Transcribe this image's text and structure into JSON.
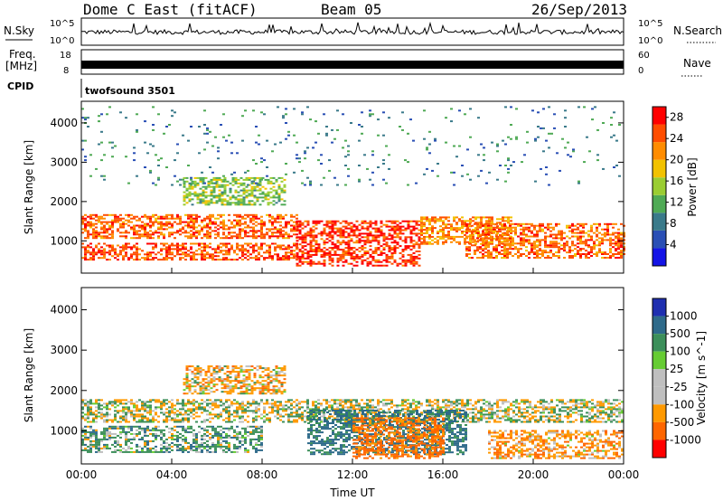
{
  "header": {
    "station": "Dome C East (fitACF)",
    "beam": "Beam 05",
    "date": "26/Sep/2013"
  },
  "top_panels": {
    "nsky_label": "N.Sky",
    "nsky_ticks": [
      "10^5",
      "10^0"
    ],
    "nsearch_label": "N.Search",
    "nsearch_ticks": [
      "10^5",
      "10^0"
    ],
    "freq_label_1": "Freq.",
    "freq_label_2": "[MHz]",
    "freq_ticks": [
      "18",
      "8"
    ],
    "nave_label": "Nave",
    "nave_ticks": [
      "60",
      "0"
    ],
    "cpid_label": "CPID",
    "cpid_value": "twofsound 3501"
  },
  "colors": {
    "power_scale": [
      "#1414e6",
      "#2a4fb5",
      "#3a7a8a",
      "#4faa55",
      "#9acd32",
      "#f2c200",
      "#ff8c00",
      "#ff4d00",
      "#ff0000"
    ],
    "velocity_scale": [
      "#1f2fb0",
      "#2e6a8a",
      "#3c8f5a",
      "#66cc33",
      "#bfbfbf",
      "#bfbfbf",
      "#ff9900",
      "#ff6600",
      "#ff0000"
    ]
  },
  "chart_data": [
    {
      "type": "heatmap",
      "title": "",
      "xlabel": "Time UT",
      "ylabel": "Slant Range [km]",
      "x_ticks": [
        "00:00",
        "04:00",
        "08:00",
        "12:00",
        "16:00",
        "20:00",
        "00:00"
      ],
      "x_range": [
        0,
        24
      ],
      "y_ticks": [
        1000,
        2000,
        3000,
        4000
      ],
      "y_range": [
        180,
        4550
      ],
      "colorbar_label": "Power [dB]",
      "colorbar_ticks": [
        4,
        8,
        12,
        16,
        20,
        24,
        28
      ],
      "colorbar_range": [
        0,
        30
      ],
      "echo_regions": [
        {
          "t0": 0,
          "t1": 9.5,
          "r0": 1050,
          "r1": 1650,
          "level": 25
        },
        {
          "t0": 0,
          "t1": 9.5,
          "r0": 500,
          "r1": 950,
          "level": 26
        },
        {
          "t0": 9.5,
          "t1": 15.0,
          "r0": 350,
          "r1": 1500,
          "level": 28
        },
        {
          "t0": 15.0,
          "t1": 19.0,
          "r0": 900,
          "r1": 1600,
          "level": 23
        },
        {
          "t0": 17.0,
          "t1": 24,
          "r0": 550,
          "r1": 1450,
          "level": 25
        },
        {
          "t0": 4.5,
          "t1": 9.0,
          "r0": 1900,
          "r1": 2600,
          "level": 14
        },
        {
          "t0": 0,
          "t1": 24,
          "r0": 2400,
          "r1": 4400,
          "level": 8
        }
      ]
    },
    {
      "type": "heatmap",
      "title": "",
      "xlabel": "Time UT",
      "ylabel": "Slant Range [km]",
      "x_ticks": [
        "00:00",
        "04:00",
        "08:00",
        "12:00",
        "16:00",
        "20:00",
        "00:00"
      ],
      "x_range": [
        0,
        24
      ],
      "y_ticks": [
        1000,
        2000,
        3000,
        4000
      ],
      "y_range": [
        180,
        4550
      ],
      "colorbar_label": "Velocity [m s^-1]",
      "colorbar_ticks": [
        "1000",
        "500",
        "100",
        "25",
        "-25",
        "-100",
        "-500",
        "-1000"
      ],
      "echo_regions": [
        {
          "t0": 0,
          "t1": 24,
          "r0": 1200,
          "r1": 1750,
          "velocity": 0
        },
        {
          "t0": 0,
          "t1": 8.0,
          "r0": 450,
          "r1": 1100,
          "velocity": 150
        },
        {
          "t0": 10.0,
          "t1": 17.0,
          "r0": 400,
          "r1": 1500,
          "velocity": 400
        },
        {
          "t0": 12.0,
          "t1": 16.0,
          "r0": 300,
          "r1": 1300,
          "velocity": -400
        },
        {
          "t0": 18.0,
          "t1": 24,
          "r0": 300,
          "r1": 1000,
          "velocity": -200
        },
        {
          "t0": 4.5,
          "t1": 9.0,
          "r0": 1900,
          "r1": 2600,
          "velocity": -150
        }
      ]
    }
  ]
}
